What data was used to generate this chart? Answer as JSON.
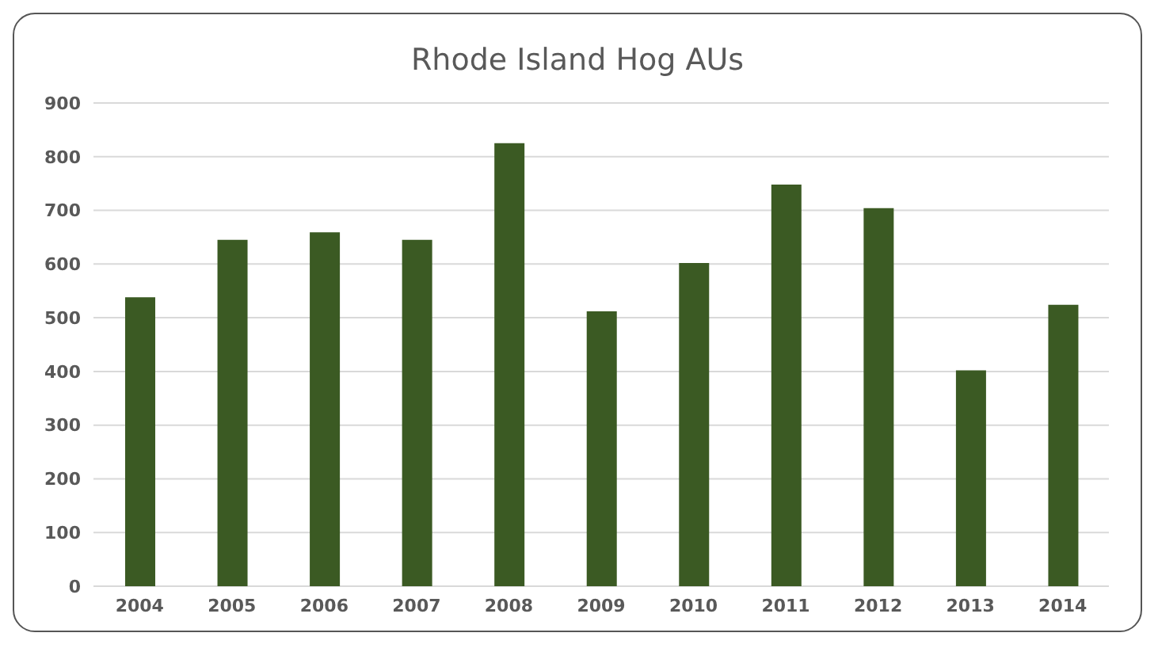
{
  "chart_data": {
    "type": "bar",
    "title": "Rhode Island Hog AUs",
    "categories": [
      "2004",
      "2005",
      "2006",
      "2007",
      "2008",
      "2009",
      "2010",
      "2011",
      "2012",
      "2013",
      "2014"
    ],
    "values": [
      538,
      645,
      659,
      645,
      825,
      512,
      602,
      748,
      704,
      402,
      524
    ],
    "color": "#3b5a23",
    "ylim": [
      0,
      900
    ],
    "yticks": [
      0,
      100,
      200,
      300,
      400,
      500,
      600,
      700,
      800,
      900
    ],
    "grid": "y"
  }
}
